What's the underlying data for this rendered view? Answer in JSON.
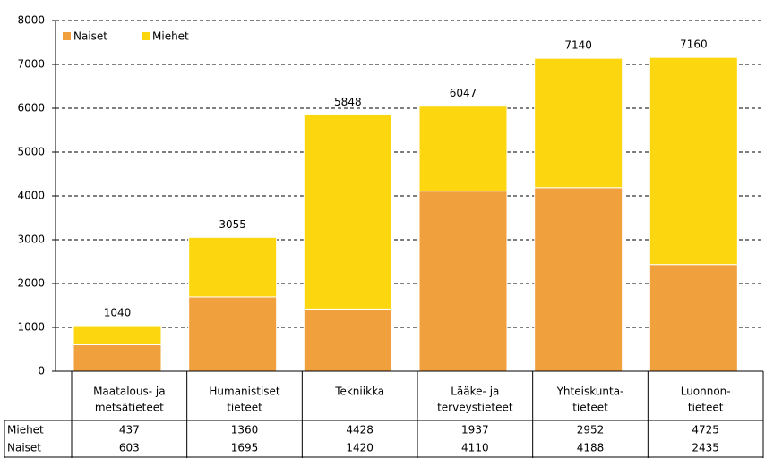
{
  "chart_data": {
    "type": "stacked_bar",
    "categories": [
      [
        "Maatalous- ja",
        "metsätieteet"
      ],
      [
        "Humanistiset",
        "tieteet"
      ],
      [
        "Tekniikka"
      ],
      [
        "Lääke- ja",
        "terveystieteet"
      ],
      [
        "Yhteiskunta-",
        "tieteet"
      ],
      [
        "Luonnon-",
        "tieteet"
      ]
    ],
    "series": [
      {
        "name": "Naiset",
        "color": "#f0a03c",
        "values": [
          603,
          1695,
          1420,
          4110,
          4188,
          2435
        ]
      },
      {
        "name": "Miehet",
        "color": "#fcd70f",
        "values": [
          437,
          1360,
          4428,
          1937,
          2952,
          4725
        ]
      }
    ],
    "totals": [
      1040,
      3055,
      5848,
      6047,
      7140,
      7160
    ],
    "table_rows": [
      "Miehet",
      "Naiset"
    ],
    "ylim": [
      0,
      8000
    ],
    "yticks": [
      0,
      1000,
      2000,
      3000,
      4000,
      5000,
      6000,
      7000,
      8000
    ],
    "grid": true
  }
}
